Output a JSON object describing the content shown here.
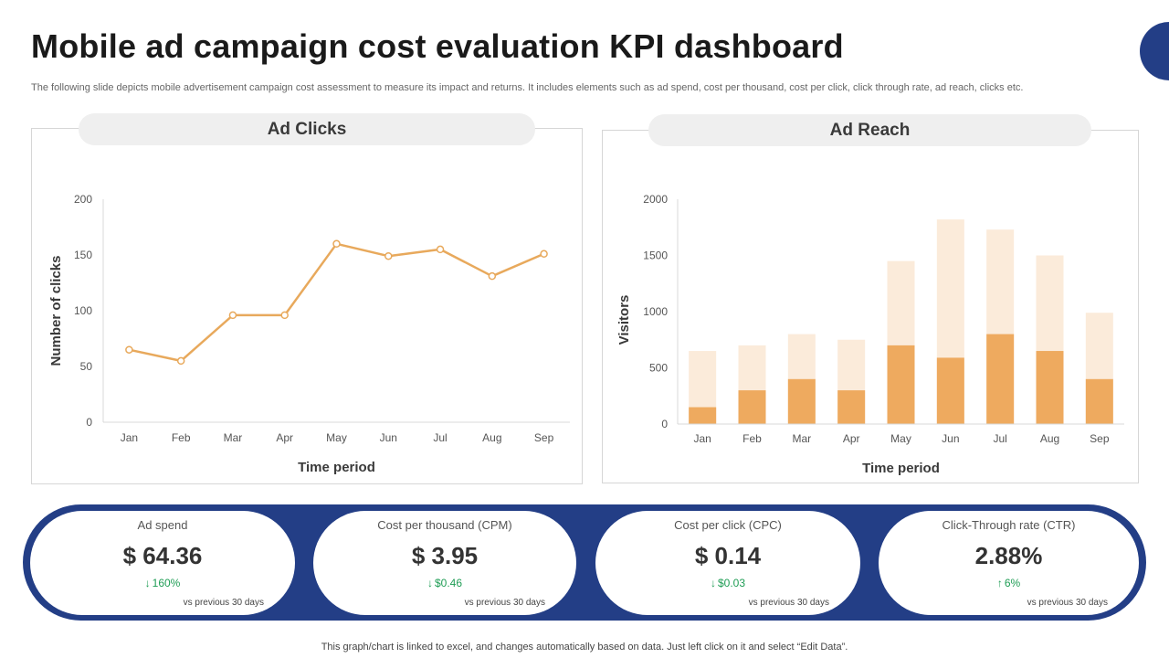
{
  "title": "Mobile ad campaign cost evaluation KPI dashboard",
  "subtitle": "The following slide depicts mobile advertisement campaign cost assessment to measure its impact and returns. It includes elements such as ad spend, cost per thousand, cost per click, click through rate, ad reach, clicks etc.",
  "colors": {
    "accent": "#233e86",
    "line": "#e8a95c",
    "bar_dark": "#eeaa5f",
    "bar_light": "#fbebda",
    "positive": "#1f9d55"
  },
  "chart_data": [
    {
      "type": "line",
      "title": "Ad Clicks",
      "xlabel": "Time period",
      "ylabel": "Number of clicks",
      "categories": [
        "Jan",
        "Feb",
        "Mar",
        "Apr",
        "May",
        "Jun",
        "Jul",
        "Aug",
        "Sep"
      ],
      "values": [
        65,
        55,
        96,
        96,
        160,
        149,
        155,
        131,
        151
      ],
      "ylim": [
        0,
        200
      ],
      "yticks": [
        0,
        50,
        100,
        150,
        200
      ],
      "grid": false,
      "legend": "none"
    },
    {
      "type": "bar",
      "title": "Ad Reach",
      "xlabel": "Time period",
      "ylabel": "Visitors",
      "categories": [
        "Jan",
        "Feb",
        "Mar",
        "Apr",
        "May",
        "Jun",
        "Jul",
        "Aug",
        "Sep"
      ],
      "series": [
        {
          "values": [
            150,
            300,
            400,
            300,
            700,
            590,
            800,
            650,
            400
          ]
        },
        {
          "values": [
            650,
            700,
            800,
            750,
            1450,
            1820,
            1730,
            1500,
            990
          ]
        }
      ],
      "overlap": true,
      "ylim": [
        0,
        2000
      ],
      "yticks": [
        0,
        500,
        1000,
        1500,
        2000
      ],
      "grid": false,
      "legend": "none"
    }
  ],
  "kpis": [
    {
      "label": "Ad spend",
      "value": "$ 64.36",
      "arrow": "↓",
      "change": "160%",
      "note": "vs previous 30 days"
    },
    {
      "label": "Cost per thousand (CPM)",
      "value": "$ 3.95",
      "arrow": "↓",
      "change": "$0.46",
      "note": "vs previous 30 days"
    },
    {
      "label": "Cost per click (CPC)",
      "value": "$ 0.14",
      "arrow": "↓",
      "change": "$0.03",
      "note": "vs previous 30 days"
    },
    {
      "label": "Click-Through rate (CTR)",
      "value": "2.88%",
      "arrow": "↑",
      "change": "6%",
      "note": "vs previous 30 days"
    }
  ],
  "footer": "This graph/chart is linked to excel, and changes automatically based on data. Just left click on it and select “Edit Data”."
}
